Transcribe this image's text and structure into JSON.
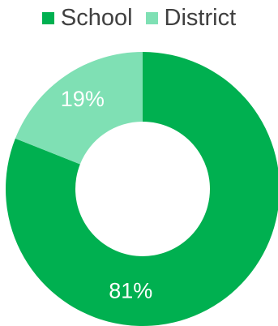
{
  "chart_data": {
    "type": "pie",
    "categories": [
      "School",
      "District"
    ],
    "values": [
      81,
      19
    ],
    "value_labels": [
      "81%",
      "19%"
    ],
    "colors": [
      "#00B050",
      "#7FE0B4"
    ],
    "legend": "top",
    "style": "donut"
  }
}
